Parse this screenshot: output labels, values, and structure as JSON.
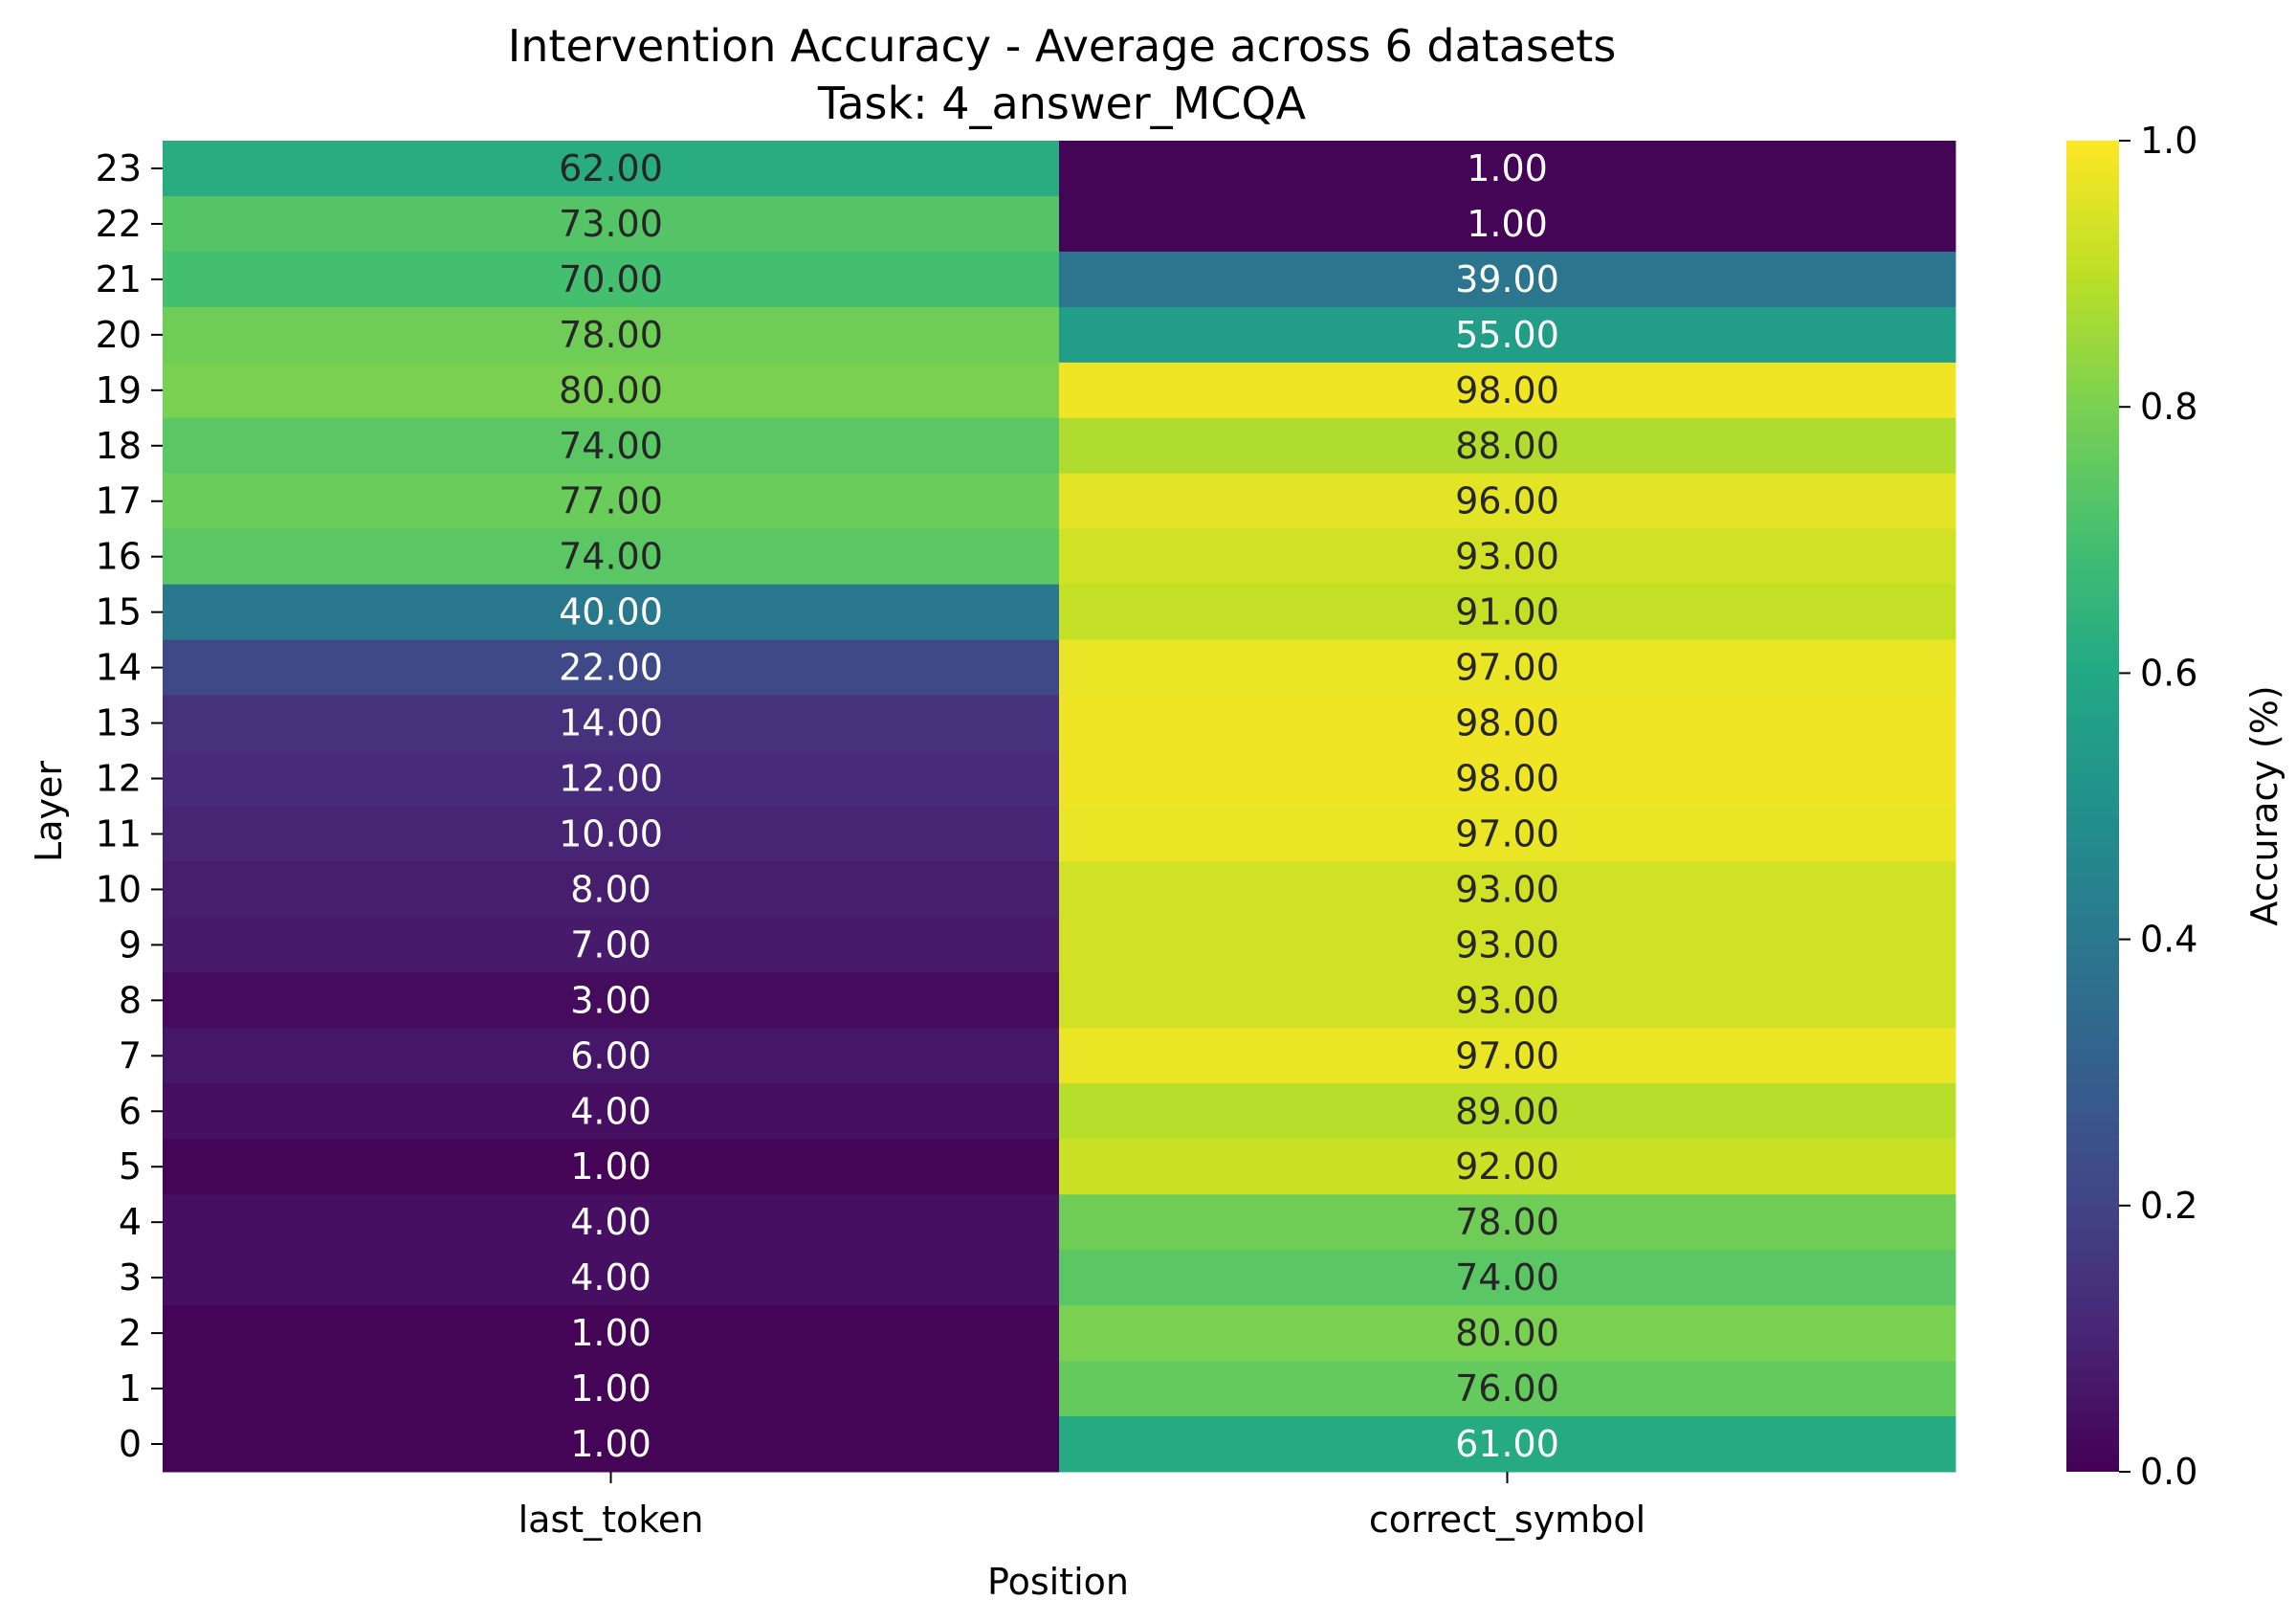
{
  "chart_data": {
    "type": "heatmap",
    "title": "Intervention Accuracy - Average across 6 datasets",
    "subtitle": "Task: 4_answer_MCQA",
    "xlabel": "Position",
    "ylabel": "Layer",
    "colorbar_label": "Accuracy (%)",
    "colormap": "viridis",
    "columns": [
      "last_token",
      "correct_symbol"
    ],
    "layers": [
      23,
      22,
      21,
      20,
      19,
      18,
      17,
      16,
      15,
      14,
      13,
      12,
      11,
      10,
      9,
      8,
      7,
      6,
      5,
      4,
      3,
      2,
      1,
      0
    ],
    "values": [
      [
        62,
        1
      ],
      [
        73,
        1
      ],
      [
        70,
        39
      ],
      [
        78,
        55
      ],
      [
        80,
        98
      ],
      [
        74,
        88
      ],
      [
        77,
        96
      ],
      [
        74,
        93
      ],
      [
        40,
        91
      ],
      [
        22,
        97
      ],
      [
        14,
        98
      ],
      [
        12,
        98
      ],
      [
        10,
        97
      ],
      [
        8,
        93
      ],
      [
        7,
        93
      ],
      [
        3,
        93
      ],
      [
        6,
        97
      ],
      [
        4,
        89
      ],
      [
        1,
        92
      ],
      [
        4,
        78
      ],
      [
        4,
        74
      ],
      [
        1,
        80
      ],
      [
        1,
        76
      ],
      [
        1,
        61
      ]
    ],
    "value_format": "2 decimals",
    "colorbar_range": [
      0,
      1
    ],
    "colorbar_ticks": [
      "0.0",
      "0.2",
      "0.4",
      "0.6",
      "0.8",
      "1.0"
    ]
  }
}
